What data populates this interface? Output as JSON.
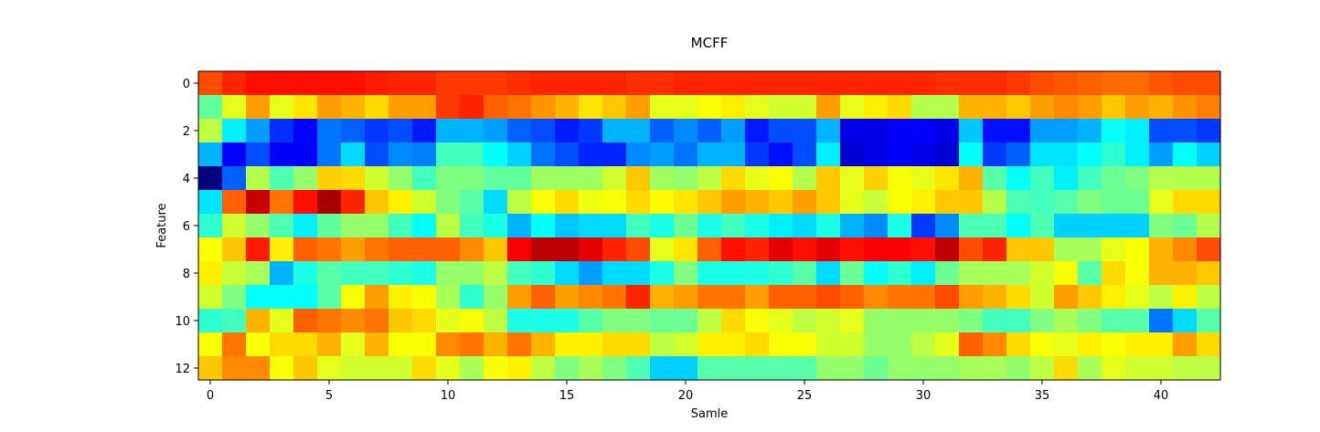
{
  "chart_data": {
    "type": "heatmap",
    "title": "MCFF",
    "xlabel": "Samle",
    "ylabel": "Feature",
    "colormap": "jet",
    "n_cols": 43,
    "n_rows": 13,
    "xlim": [
      -0.5,
      42.5
    ],
    "ylim": [
      12.5,
      -0.5
    ],
    "xticks": [
      0,
      5,
      10,
      15,
      20,
      25,
      30,
      35,
      40
    ],
    "yticks": [
      0,
      2,
      4,
      6,
      8,
      10,
      12
    ],
    "grid": false,
    "legend": "none",
    "values": [
      [
        0.8,
        0.84,
        0.86,
        0.86,
        0.86,
        0.86,
        0.86,
        0.85,
        0.84,
        0.84,
        0.82,
        0.82,
        0.82,
        0.83,
        0.84,
        0.84,
        0.84,
        0.84,
        0.83,
        0.83,
        0.84,
        0.84,
        0.84,
        0.84,
        0.84,
        0.84,
        0.84,
        0.84,
        0.84,
        0.84,
        0.84,
        0.83,
        0.83,
        0.83,
        0.82,
        0.8,
        0.79,
        0.78,
        0.77,
        0.77,
        0.79,
        0.8,
        0.8
      ],
      [
        0.47,
        0.6,
        0.72,
        0.6,
        0.65,
        0.72,
        0.7,
        0.66,
        0.72,
        0.72,
        0.82,
        0.84,
        0.78,
        0.76,
        0.73,
        0.7,
        0.65,
        0.68,
        0.72,
        0.6,
        0.6,
        0.62,
        0.64,
        0.6,
        0.58,
        0.58,
        0.72,
        0.6,
        0.64,
        0.66,
        0.55,
        0.55,
        0.7,
        0.7,
        0.68,
        0.72,
        0.74,
        0.72,
        0.68,
        0.72,
        0.7,
        0.73,
        0.75
      ],
      [
        0.56,
        0.36,
        0.28,
        0.17,
        0.12,
        0.24,
        0.22,
        0.18,
        0.2,
        0.15,
        0.3,
        0.3,
        0.28,
        0.22,
        0.2,
        0.15,
        0.18,
        0.3,
        0.3,
        0.22,
        0.26,
        0.22,
        0.28,
        0.15,
        0.2,
        0.2,
        0.3,
        0.1,
        0.1,
        0.12,
        0.12,
        0.1,
        0.32,
        0.14,
        0.14,
        0.28,
        0.28,
        0.3,
        0.38,
        0.36,
        0.2,
        0.2,
        0.18
      ],
      [
        0.3,
        0.12,
        0.2,
        0.12,
        0.12,
        0.24,
        0.34,
        0.2,
        0.26,
        0.25,
        0.44,
        0.44,
        0.38,
        0.33,
        0.24,
        0.2,
        0.16,
        0.16,
        0.26,
        0.28,
        0.24,
        0.3,
        0.3,
        0.18,
        0.14,
        0.2,
        0.36,
        0.08,
        0.1,
        0.12,
        0.1,
        0.08,
        0.38,
        0.18,
        0.22,
        0.35,
        0.35,
        0.38,
        0.42,
        0.36,
        0.28,
        0.38,
        0.33
      ],
      [
        0.0,
        0.22,
        0.55,
        0.45,
        0.52,
        0.67,
        0.66,
        0.58,
        0.52,
        0.44,
        0.5,
        0.5,
        0.47,
        0.47,
        0.53,
        0.53,
        0.53,
        0.58,
        0.68,
        0.53,
        0.52,
        0.56,
        0.66,
        0.6,
        0.62,
        0.55,
        0.68,
        0.6,
        0.67,
        0.62,
        0.6,
        0.65,
        0.7,
        0.46,
        0.38,
        0.44,
        0.36,
        0.44,
        0.48,
        0.5,
        0.55,
        0.55,
        0.55
      ],
      [
        0.35,
        0.78,
        0.93,
        0.76,
        0.86,
        0.96,
        0.84,
        0.68,
        0.64,
        0.58,
        0.5,
        0.46,
        0.34,
        0.56,
        0.62,
        0.66,
        0.61,
        0.62,
        0.66,
        0.63,
        0.65,
        0.68,
        0.72,
        0.7,
        0.68,
        0.72,
        0.68,
        0.6,
        0.57,
        0.62,
        0.64,
        0.68,
        0.68,
        0.55,
        0.45,
        0.44,
        0.46,
        0.5,
        0.48,
        0.48,
        0.6,
        0.66,
        0.66
      ],
      [
        0.42,
        0.58,
        0.52,
        0.45,
        0.36,
        0.47,
        0.52,
        0.52,
        0.44,
        0.38,
        0.56,
        0.44,
        0.4,
        0.3,
        0.38,
        0.32,
        0.34,
        0.34,
        0.44,
        0.4,
        0.48,
        0.4,
        0.44,
        0.4,
        0.36,
        0.34,
        0.4,
        0.3,
        0.26,
        0.4,
        0.18,
        0.26,
        0.45,
        0.45,
        0.38,
        0.45,
        0.33,
        0.33,
        0.33,
        0.33,
        0.5,
        0.48,
        0.55
      ],
      [
        0.62,
        0.68,
        0.85,
        0.64,
        0.78,
        0.76,
        0.72,
        0.76,
        0.78,
        0.78,
        0.78,
        0.74,
        0.68,
        0.88,
        0.94,
        0.94,
        0.9,
        0.84,
        0.8,
        0.6,
        0.65,
        0.78,
        0.86,
        0.84,
        0.9,
        0.86,
        0.9,
        0.86,
        0.88,
        0.88,
        0.86,
        0.94,
        0.8,
        0.84,
        0.68,
        0.68,
        0.54,
        0.54,
        0.6,
        0.62,
        0.7,
        0.74,
        0.8
      ],
      [
        0.64,
        0.57,
        0.54,
        0.3,
        0.4,
        0.46,
        0.44,
        0.44,
        0.42,
        0.4,
        0.52,
        0.52,
        0.56,
        0.44,
        0.42,
        0.34,
        0.28,
        0.34,
        0.34,
        0.4,
        0.5,
        0.4,
        0.4,
        0.4,
        0.42,
        0.46,
        0.34,
        0.48,
        0.38,
        0.42,
        0.36,
        0.48,
        0.54,
        0.54,
        0.54,
        0.58,
        0.62,
        0.46,
        0.66,
        0.62,
        0.7,
        0.7,
        0.68
      ],
      [
        0.58,
        0.5,
        0.38,
        0.38,
        0.38,
        0.46,
        0.62,
        0.72,
        0.64,
        0.62,
        0.54,
        0.42,
        0.52,
        0.72,
        0.78,
        0.72,
        0.74,
        0.76,
        0.84,
        0.7,
        0.72,
        0.76,
        0.76,
        0.72,
        0.78,
        0.78,
        0.8,
        0.78,
        0.74,
        0.76,
        0.76,
        0.8,
        0.72,
        0.7,
        0.66,
        0.58,
        0.72,
        0.68,
        0.64,
        0.6,
        0.56,
        0.64,
        0.56
      ],
      [
        0.42,
        0.44,
        0.7,
        0.6,
        0.78,
        0.76,
        0.74,
        0.76,
        0.68,
        0.66,
        0.6,
        0.62,
        0.56,
        0.4,
        0.4,
        0.4,
        0.46,
        0.5,
        0.5,
        0.48,
        0.48,
        0.56,
        0.66,
        0.62,
        0.6,
        0.56,
        0.58,
        0.6,
        0.52,
        0.52,
        0.52,
        0.52,
        0.5,
        0.44,
        0.44,
        0.5,
        0.54,
        0.5,
        0.46,
        0.46,
        0.24,
        0.34,
        0.46
      ],
      [
        0.62,
        0.76,
        0.62,
        0.66,
        0.66,
        0.7,
        0.6,
        0.7,
        0.62,
        0.62,
        0.74,
        0.76,
        0.7,
        0.76,
        0.7,
        0.64,
        0.64,
        0.66,
        0.66,
        0.56,
        0.58,
        0.64,
        0.64,
        0.66,
        0.62,
        0.62,
        0.58,
        0.58,
        0.52,
        0.52,
        0.56,
        0.6,
        0.78,
        0.74,
        0.66,
        0.62,
        0.6,
        0.64,
        0.62,
        0.64,
        0.64,
        0.72,
        0.66
      ],
      [
        0.68,
        0.74,
        0.74,
        0.62,
        0.68,
        0.6,
        0.58,
        0.58,
        0.58,
        0.66,
        0.6,
        0.54,
        0.62,
        0.64,
        0.56,
        0.5,
        0.54,
        0.5,
        0.45,
        0.33,
        0.33,
        0.46,
        0.46,
        0.46,
        0.46,
        0.46,
        0.52,
        0.52,
        0.48,
        0.52,
        0.52,
        0.52,
        0.54,
        0.54,
        0.52,
        0.56,
        0.66,
        0.54,
        0.6,
        0.58,
        0.58,
        0.56,
        0.56
      ]
    ]
  }
}
